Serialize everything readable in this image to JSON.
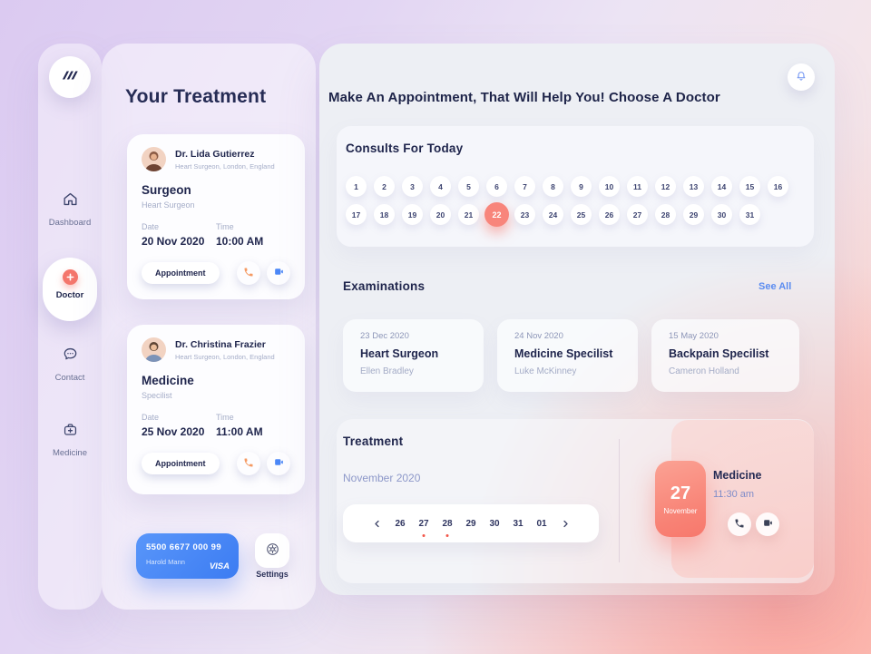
{
  "colors": {
    "accent_blue": "#5b8cf0",
    "salmon": "#f8857b",
    "navy": "#20264d",
    "muted": "#a5adc8",
    "visa_blue": "#3c7cf2",
    "alert_red": "#f2574b"
  },
  "sidebar": {
    "logo_icon": "wave-logo-icon",
    "items": [
      {
        "label": "Dashboard",
        "icon": "home-icon",
        "active": false
      },
      {
        "label": "Doctor",
        "icon": "plus-circle-icon",
        "active": true
      },
      {
        "label": "Contact",
        "icon": "chat-icon",
        "active": false
      },
      {
        "label": "Medicine",
        "icon": "medicine-bag-icon",
        "active": false
      }
    ]
  },
  "treatment_panel": {
    "title": "Your Treatment",
    "doctors": [
      {
        "name": "Dr. Lida Gutierrez",
        "location": "Heart Surgeon, London, England",
        "specialty": "Surgeon",
        "specialty_sub": "Heart Surgeon",
        "date_label": "Date",
        "date": "20 Nov 2020",
        "time_label": "Time",
        "time": "10:00 AM",
        "appointment_label": "Appointment"
      },
      {
        "name": "Dr. Christina Frazier",
        "location": "Heart Surgeon, London, England",
        "specialty": "Medicine",
        "specialty_sub": "Specilist",
        "date_label": "Date",
        "date": "25 Nov 2020",
        "time_label": "Time",
        "time": "11:00 AM",
        "appointment_label": "Appointment"
      }
    ],
    "payment_card": {
      "number": "5500 6677 000 99",
      "holder": "Harold Mann",
      "brand": "VISA"
    },
    "settings_label": "Settings"
  },
  "main": {
    "header": "Make An Appointment, That Will Help You! Choose A Doctor",
    "bell_icon": "bell-icon",
    "consults": {
      "title": "Consults For Today",
      "week1": [
        1,
        2,
        3,
        4,
        5,
        6,
        7,
        8,
        9,
        10,
        11,
        12,
        13,
        14,
        15,
        16
      ],
      "week2": [
        17,
        18,
        19,
        20,
        21,
        22,
        23,
        24,
        25,
        26,
        27,
        28,
        29,
        30,
        31
      ],
      "selected_day": 22
    },
    "examinations": {
      "title": "Examinations",
      "see_all": "See All",
      "cards": [
        {
          "date": "23 Dec 2020",
          "title": "Heart Surgeon",
          "person": "Ellen Bradley"
        },
        {
          "date": "24 Nov 2020",
          "title": "Medicine Specilist",
          "person": "Luke McKinney"
        },
        {
          "date": "15 May 2020",
          "title": "Backpain Specilist",
          "person": "Cameron Holland"
        }
      ]
    },
    "treatment": {
      "title": "Treatment",
      "month": "November 2020",
      "days": [
        {
          "label": "26",
          "dot": false
        },
        {
          "label": "27",
          "dot": true
        },
        {
          "label": "28",
          "dot": true
        },
        {
          "label": "29",
          "dot": false
        },
        {
          "label": "30",
          "dot": false
        },
        {
          "label": "31",
          "dot": false
        },
        {
          "label": "01",
          "dot": false
        }
      ],
      "appointment": {
        "day": "27",
        "month": "November",
        "specialty": "Medicine",
        "time": "11:30 am"
      }
    }
  }
}
